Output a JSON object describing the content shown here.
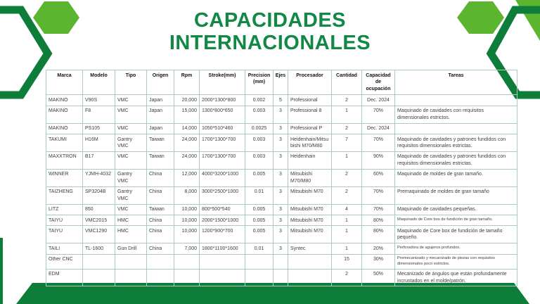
{
  "colors": {
    "accent_dark": "#0E7D3A",
    "accent_light": "#5CB52E",
    "title_green": "#128845",
    "table_border": "#AECBBF",
    "body_text": "#3E3E3E"
  },
  "header": {
    "title_line1": "CAPACIDADES",
    "title_line2": "INTERNACIONALES"
  },
  "table": {
    "columns": [
      "Marca",
      "Modelo",
      "Tipo",
      "Origen",
      "Rpm",
      "Stroke(mm)",
      "Precision (mm)",
      "Ejes",
      "Procesador",
      "Cantidad",
      "Capacidad de ocupación",
      "Tareas"
    ],
    "rows": [
      {
        "cells": [
          "MAKINO",
          "V90S",
          "VMC",
          "Japan",
          "20,000",
          "2000*1300*800",
          "0.002",
          "5",
          "Professional",
          "2",
          "Dec. 2024",
          ""
        ],
        "tarea_small": false
      },
      {
        "cells": [
          "MAKINO",
          "F8",
          "VMC",
          "Japan",
          "15,000",
          "1300*800*650",
          "0.003",
          "3",
          "Professional 8",
          "1",
          "70%",
          "Maquinado de cavidades con requisitos dimensionales estrictos."
        ],
        "tarea_small": false
      },
      {
        "cells": [
          "MAKINO",
          "PS105",
          "VMC",
          "Japan",
          "14,000",
          "1050*510*460",
          "0.0025",
          "3",
          "Professional P",
          "2",
          "Dec. 2024",
          ""
        ],
        "tarea_small": false
      },
      {
        "cells": [
          "TAKUMI",
          "H16M",
          "Gantry VMC",
          "Taiwan",
          "24,000",
          "1700*1300*700",
          "0.003",
          "3",
          "Heidenhain/Mitsubishi M70/M80",
          "7",
          "70%",
          "Maquinado de cavidades y patrones fundidos con requisitos dimensionales estrictas."
        ],
        "tarea_small": false
      },
      {
        "cells": [
          "MAXXTRON",
          "B17",
          "VMC",
          "Taiwan",
          "24,000",
          "1700*1300*700",
          "0.003",
          "3",
          "Heidenhain",
          "1",
          "90%",
          "Maquinado de cavidades y patrones fundidos con requisitos dimensionales estrictas."
        ],
        "tarea_small": false
      },
      {
        "cells": [
          "WINNER",
          "YJMH-4032",
          "Gantry VMC",
          "China",
          "12,000",
          "4000*3200*1000",
          "0.005",
          "3",
          "Mitsubishi M70/M80",
          "2",
          "60%",
          "Maquinado de moldes de gran tamaño."
        ],
        "tarea_small": false
      },
      {
        "cells": [
          "TAIZHENG",
          "SP3204B",
          "Gantry VMC",
          "China",
          "8,000",
          "3000*2500*1000",
          "0.01",
          "3",
          "Mitsubishi M70",
          "2",
          "70%",
          "Premaquinado de moldes de gran tamaño"
        ],
        "tarea_small": false
      },
      {
        "cells": [
          "LITZ",
          "850",
          "VMC",
          "Taiwan",
          "10,000",
          "800*500*540",
          "0.005",
          "3",
          "Mitsubishi M70",
          "4",
          "70%",
          "Maquinado de cavidades pequeñas."
        ],
        "tarea_small": false
      },
      {
        "cells": [
          "TAIYU",
          "VMC2015",
          "HMC",
          "China",
          "10,000",
          "2000*1500*1000",
          "0.005",
          "3",
          "Mitsubishi M70",
          "1",
          "80%",
          "Maquinado de Core box de fundición de gran tamaño."
        ],
        "tarea_small": true
      },
      {
        "cells": [
          "TAIYU",
          "VMC1290",
          "HMC",
          "China",
          "10,000",
          "1200*900*700",
          "0.005",
          "3",
          "Mitsubishi M70",
          "1",
          "80%",
          "Maquinado de Core box de fundición de tamaño pequeño."
        ],
        "tarea_small": false
      },
      {
        "cells": [
          "TAILI",
          "TL-1600",
          "Gun Drill",
          "China",
          "7,000",
          "1800*1100*1600",
          "0.01",
          "3",
          "Syntec",
          "1",
          "20%",
          "Perforadora de agujeros profundos."
        ],
        "tarea_small": true
      },
      {
        "cells": [
          "Other CNC",
          "",
          "",
          "",
          "",
          "",
          "",
          "",
          "",
          "15",
          "30%",
          "Premecanizado y mecanizado de piezas con requisitos dimensionales poco estrictos."
        ],
        "tarea_small": true
      },
      {
        "cells": [
          "EDM",
          "",
          "",
          "",
          "",
          "",
          "",
          "",
          "",
          "2",
          "50%",
          "Mecanizado de ángulos que están profundamente incrustados en el molde/patrón."
        ],
        "tarea_small": false
      }
    ]
  }
}
